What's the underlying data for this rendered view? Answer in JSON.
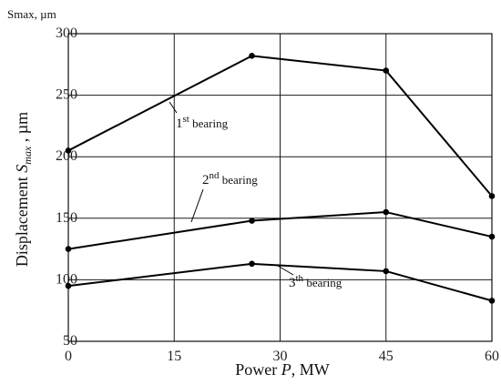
{
  "chart_data": {
    "type": "line",
    "title": "",
    "units_label": "Smax, µm",
    "xlabel": {
      "main": "Power ",
      "var": "P",
      "unit": ", MW"
    },
    "ylabel": {
      "main": "Displacement ",
      "var": "S",
      "sub": "max",
      "unit": " , µm"
    },
    "xlim": [
      0,
      60
    ],
    "ylim": [
      50,
      300
    ],
    "x_ticks": [
      0,
      15,
      30,
      45,
      60
    ],
    "y_ticks": [
      50,
      100,
      150,
      200,
      250,
      300
    ],
    "grid": true,
    "series": [
      {
        "name": "1st bearing",
        "label_parts": {
          "num": "1",
          "sup": "st",
          "rest": " bearing"
        },
        "x": [
          0,
          26,
          45,
          60
        ],
        "values": [
          205,
          282,
          270,
          168
        ]
      },
      {
        "name": "2nd bearing",
        "label_parts": {
          "num": "2",
          "sup": "nd",
          "rest": " bearing"
        },
        "x": [
          0,
          26,
          45,
          60
        ],
        "values": [
          125,
          148,
          155,
          135
        ]
      },
      {
        "name": "3th bearing",
        "label_parts": {
          "num": "3",
          "sup": "th",
          "rest": " bearing"
        },
        "x": [
          0,
          26,
          45,
          60
        ],
        "values": [
          95,
          113,
          107,
          83
        ]
      }
    ]
  }
}
